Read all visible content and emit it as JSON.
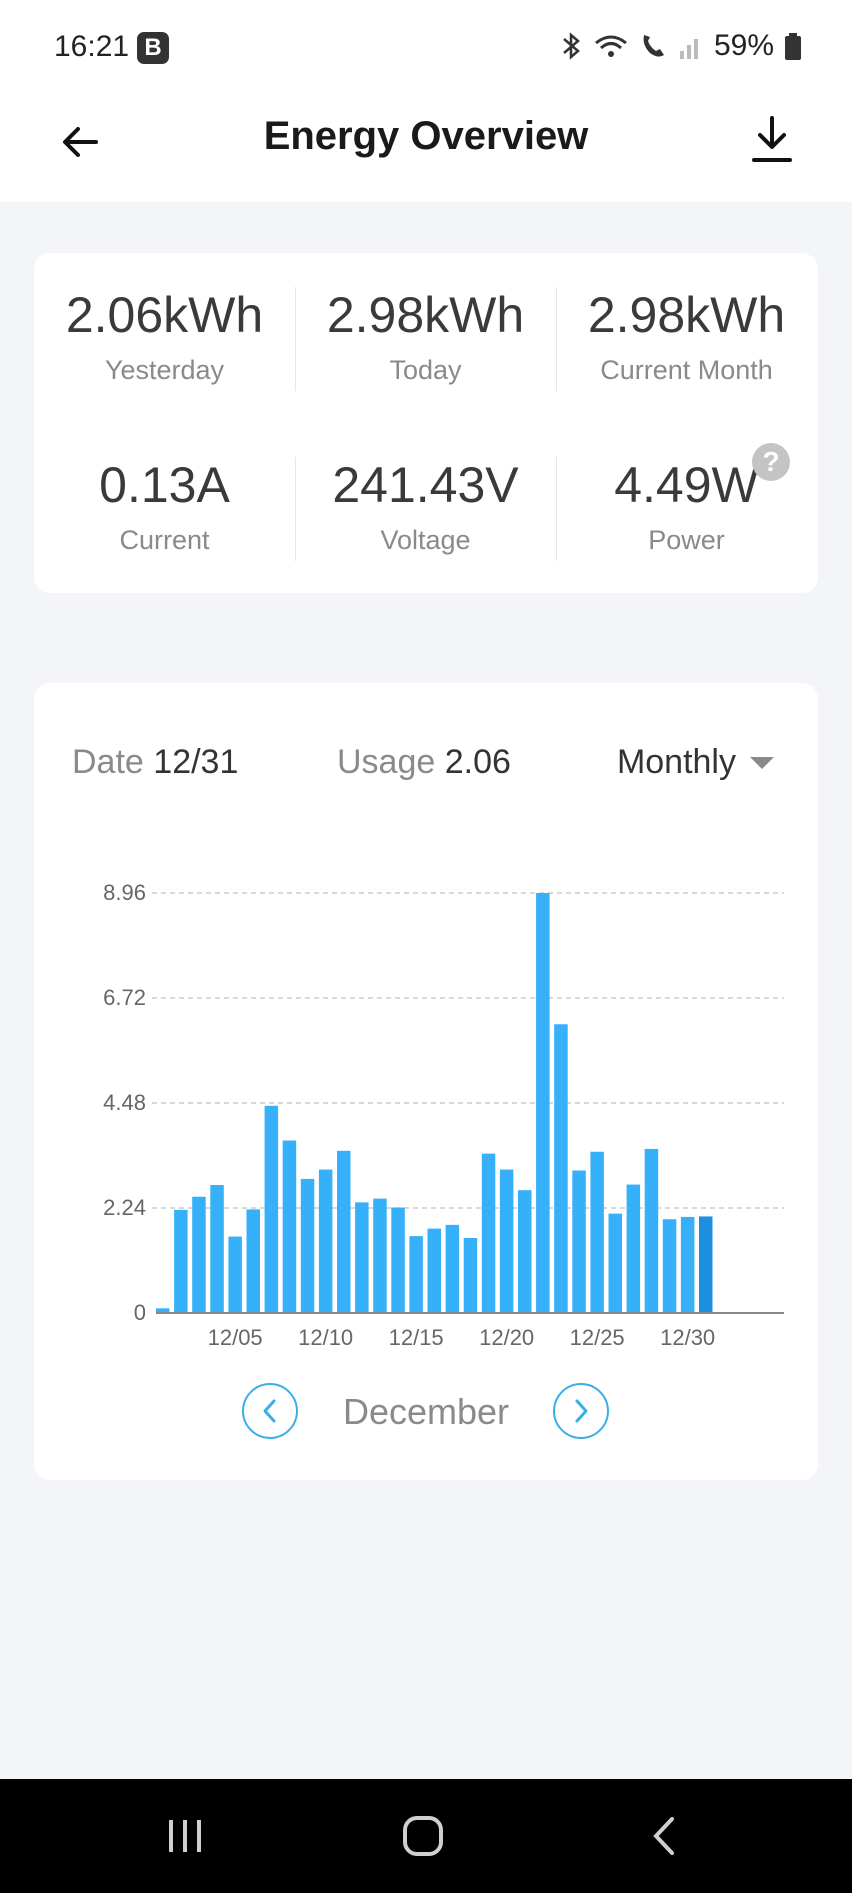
{
  "status_bar": {
    "time": "16:21",
    "badge": "B",
    "battery": "59%"
  },
  "header": {
    "title": "Energy Overview"
  },
  "stats": [
    {
      "value": "2.06kWh",
      "label": "Yesterday"
    },
    {
      "value": "2.98kWh",
      "label": "Today"
    },
    {
      "value": "2.98kWh",
      "label": "Current Month"
    },
    {
      "value": "0.13A",
      "label": "Current"
    },
    {
      "value": "241.43V",
      "label": "Voltage"
    },
    {
      "value": "4.49W",
      "label": "Power"
    }
  ],
  "selection": {
    "date_label": "Date",
    "date_value": "12/31",
    "usage_label": "Usage",
    "usage_value": "2.06",
    "period": "Monthly"
  },
  "chart_data": {
    "type": "bar",
    "categories": [
      "12/01",
      "12/02",
      "12/03",
      "12/04",
      "12/05",
      "12/06",
      "12/07",
      "12/08",
      "12/09",
      "12/10",
      "12/11",
      "12/12",
      "12/13",
      "12/14",
      "12/15",
      "12/16",
      "12/17",
      "12/18",
      "12/19",
      "12/20",
      "12/21",
      "12/22",
      "12/23",
      "12/24",
      "12/25",
      "12/26",
      "12/27",
      "12/28",
      "12/29",
      "12/30",
      "12/31"
    ],
    "values": [
      0.1,
      2.2,
      2.48,
      2.73,
      1.63,
      2.21,
      4.42,
      3.68,
      2.86,
      3.06,
      3.46,
      2.36,
      2.44,
      2.25,
      1.64,
      1.8,
      1.88,
      1.6,
      3.4,
      3.06,
      2.62,
      8.96,
      6.16,
      3.04,
      3.44,
      2.12,
      2.74,
      3.5,
      2.0,
      2.05,
      2.06
    ],
    "x_tick_labels": [
      "12/05",
      "12/10",
      "12/15",
      "12/20",
      "12/25",
      "12/30"
    ],
    "y_ticks": [
      0,
      2.24,
      4.48,
      6.72,
      8.96
    ],
    "ylim": [
      0,
      8.96
    ],
    "grid": true,
    "bar_color": "#36b0f8",
    "selected_color": "#1e8fe0",
    "selected_index": 30
  },
  "month_nav": {
    "label": "December"
  },
  "colors": {
    "accent": "#3aaee9",
    "background": "#f4f5f9"
  }
}
